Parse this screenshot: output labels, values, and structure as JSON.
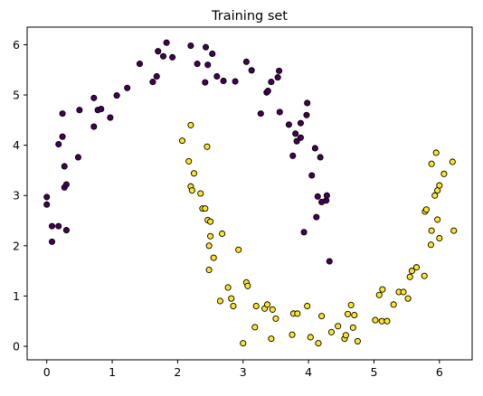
{
  "chart_data": {
    "type": "scatter",
    "title": "Training set",
    "xlabel": "",
    "ylabel": "",
    "xlim": [
      -0.3,
      6.5
    ],
    "ylim": [
      -0.27,
      6.35
    ],
    "xticks": [
      0,
      1,
      2,
      3,
      4,
      5,
      6
    ],
    "yticks": [
      0,
      1,
      2,
      3,
      4,
      5,
      6
    ],
    "grid": false,
    "legend": "none",
    "series": [
      {
        "color": "#440154",
        "points": [
          [
            0.0,
            2.97
          ],
          [
            0.0,
            2.82
          ],
          [
            0.08,
            2.39
          ],
          [
            0.08,
            2.08
          ],
          [
            0.18,
            2.39
          ],
          [
            0.3,
            2.31
          ],
          [
            0.18,
            4.02
          ],
          [
            0.24,
            4.17
          ],
          [
            0.24,
            4.63
          ],
          [
            0.27,
            3.58
          ],
          [
            0.27,
            3.16
          ],
          [
            0.3,
            3.22
          ],
          [
            0.48,
            3.76
          ],
          [
            0.5,
            4.7
          ],
          [
            0.72,
            4.94
          ],
          [
            0.72,
            4.37
          ],
          [
            0.78,
            4.7
          ],
          [
            0.83,
            4.72
          ],
          [
            0.97,
            4.55
          ],
          [
            1.07,
            4.99
          ],
          [
            1.23,
            5.14
          ],
          [
            1.42,
            5.62
          ],
          [
            1.62,
            5.26
          ],
          [
            1.68,
            5.37
          ],
          [
            1.7,
            5.87
          ],
          [
            1.78,
            5.77
          ],
          [
            1.83,
            6.04
          ],
          [
            1.92,
            5.75
          ],
          [
            2.2,
            5.98
          ],
          [
            2.3,
            5.62
          ],
          [
            2.42,
            5.25
          ],
          [
            2.43,
            5.95
          ],
          [
            2.46,
            5.6
          ],
          [
            2.53,
            5.82
          ],
          [
            2.6,
            5.37
          ],
          [
            2.7,
            5.28
          ],
          [
            2.88,
            5.27
          ],
          [
            3.05,
            5.66
          ],
          [
            3.13,
            5.49
          ],
          [
            3.27,
            4.63
          ],
          [
            3.36,
            5.05
          ],
          [
            3.38,
            5.08
          ],
          [
            3.43,
            5.26
          ],
          [
            3.53,
            5.35
          ],
          [
            3.55,
            5.48
          ],
          [
            3.56,
            4.66
          ],
          [
            3.7,
            4.41
          ],
          [
            3.76,
            3.79
          ],
          [
            3.8,
            4.23
          ],
          [
            3.82,
            4.08
          ],
          [
            3.88,
            4.15
          ],
          [
            3.88,
            4.44
          ],
          [
            3.93,
            2.27
          ],
          [
            3.97,
            4.6
          ],
          [
            3.98,
            4.84
          ],
          [
            4.05,
            3.4
          ],
          [
            4.1,
            3.94
          ],
          [
            4.12,
            2.57
          ],
          [
            4.14,
            2.98
          ],
          [
            4.18,
            3.76
          ],
          [
            4.2,
            2.87
          ],
          [
            4.27,
            2.9
          ],
          [
            4.28,
            3.0
          ],
          [
            4.32,
            1.69
          ]
        ]
      },
      {
        "color": "#fde725",
        "points": [
          [
            2.07,
            4.09
          ],
          [
            2.17,
            3.68
          ],
          [
            2.2,
            3.18
          ],
          [
            2.2,
            4.4
          ],
          [
            2.22,
            3.1
          ],
          [
            2.25,
            3.44
          ],
          [
            2.35,
            3.04
          ],
          [
            2.38,
            2.74
          ],
          [
            2.42,
            2.74
          ],
          [
            2.45,
            3.97
          ],
          [
            2.46,
            2.51
          ],
          [
            2.48,
            2.0
          ],
          [
            2.5,
            2.19
          ],
          [
            2.5,
            2.48
          ],
          [
            2.48,
            1.52
          ],
          [
            2.55,
            1.76
          ],
          [
            2.65,
            0.9
          ],
          [
            2.68,
            2.24
          ],
          [
            2.77,
            1.17
          ],
          [
            2.82,
            0.95
          ],
          [
            2.85,
            0.8
          ],
          [
            2.93,
            1.92
          ],
          [
            3.0,
            0.06
          ],
          [
            3.05,
            1.27
          ],
          [
            3.07,
            1.2
          ],
          [
            3.18,
            0.38
          ],
          [
            3.2,
            0.8
          ],
          [
            3.33,
            0.75
          ],
          [
            3.37,
            0.83
          ],
          [
            3.43,
            0.15
          ],
          [
            3.45,
            0.73
          ],
          [
            3.5,
            0.55
          ],
          [
            3.75,
            0.23
          ],
          [
            3.77,
            0.65
          ],
          [
            3.83,
            0.65
          ],
          [
            3.98,
            0.8
          ],
          [
            4.03,
            0.18
          ],
          [
            4.15,
            0.06
          ],
          [
            4.2,
            0.6
          ],
          [
            4.35,
            0.28
          ],
          [
            4.45,
            0.4
          ],
          [
            4.55,
            0.15
          ],
          [
            4.57,
            0.22
          ],
          [
            4.6,
            0.64
          ],
          [
            4.65,
            0.82
          ],
          [
            4.68,
            0.37
          ],
          [
            4.7,
            0.62
          ],
          [
            4.75,
            0.1
          ],
          [
            5.02,
            0.52
          ],
          [
            5.08,
            1.02
          ],
          [
            5.12,
            0.5
          ],
          [
            5.13,
            1.13
          ],
          [
            5.2,
            0.5
          ],
          [
            5.3,
            0.83
          ],
          [
            5.38,
            1.08
          ],
          [
            5.45,
            1.08
          ],
          [
            5.52,
            0.95
          ],
          [
            5.55,
            1.38
          ],
          [
            5.58,
            1.5
          ],
          [
            5.65,
            1.57
          ],
          [
            5.77,
            1.4
          ],
          [
            5.78,
            2.68
          ],
          [
            5.8,
            2.72
          ],
          [
            5.87,
            2.02
          ],
          [
            5.88,
            2.3
          ],
          [
            5.88,
            3.63
          ],
          [
            5.93,
            3.0
          ],
          [
            5.95,
            3.85
          ],
          [
            5.97,
            2.52
          ],
          [
            5.97,
            3.1
          ],
          [
            6.0,
            3.2
          ],
          [
            6.0,
            2.15
          ],
          [
            6.07,
            3.43
          ],
          [
            6.2,
            3.67
          ],
          [
            6.22,
            2.3
          ]
        ]
      }
    ]
  }
}
